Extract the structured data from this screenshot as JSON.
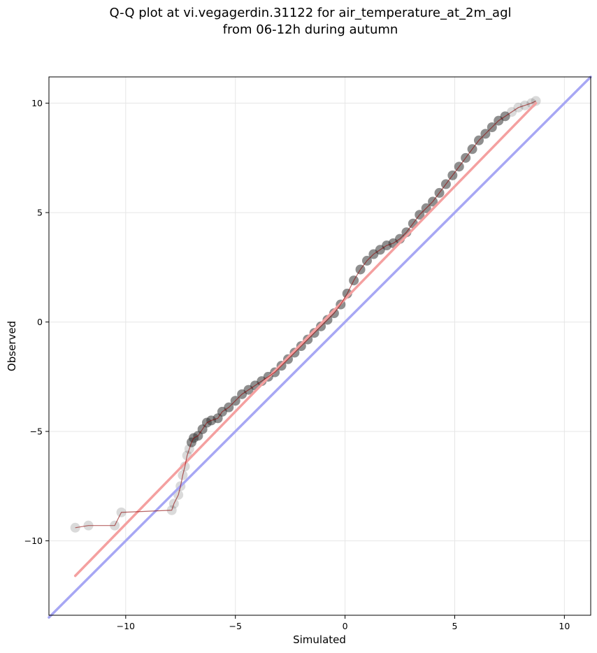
{
  "chart_data": {
    "type": "scatter",
    "title": "Q-Q plot at vi.vegagerdin.31122 for air_temperature_at_2m_agl",
    "subtitle": "from 06-12h during autumn",
    "xlabel": "Simulated",
    "ylabel": "Observed",
    "xlim": [
      -13.5,
      11.2
    ],
    "ylim": [
      -13.4,
      11.2
    ],
    "xticks": [
      -10,
      -5,
      0,
      5,
      10
    ],
    "yticks": [
      -10,
      -5,
      0,
      5,
      10
    ],
    "xtick_labels": [
      "−10",
      "−5",
      "0",
      "5",
      "10"
    ],
    "ytick_labels": [
      "−10",
      "−5",
      "0",
      "5",
      "10"
    ],
    "grid": true,
    "legend": "none",
    "series": [
      {
        "kind": "points",
        "color": "#333333",
        "x": [
          -12.3,
          -11.7,
          -10.5,
          -10.2,
          -7.9,
          -7.8,
          -7.6,
          -7.5,
          -7.4,
          -7.3,
          -7.2,
          -7.1,
          -7.0,
          -6.9,
          -6.7,
          -6.5,
          -6.3,
          -6.1,
          -5.8,
          -5.6,
          -5.3,
          -5.0,
          -4.7,
          -4.4,
          -4.1,
          -3.8,
          -3.5,
          -3.2,
          -2.9,
          -2.6,
          -2.3,
          -2.0,
          -1.7,
          -1.4,
          -1.1,
          -0.8,
          -0.5,
          -0.2,
          0.1,
          0.4,
          0.7,
          1.0,
          1.3,
          1.6,
          1.9,
          2.2,
          2.5,
          2.8,
          3.1,
          3.4,
          3.7,
          4.0,
          4.3,
          4.6,
          4.9,
          5.2,
          5.5,
          5.8,
          6.1,
          6.4,
          6.7,
          7.0,
          7.3,
          7.6,
          7.9,
          8.2,
          8.5,
          8.7
        ],
        "y": [
          -9.4,
          -9.3,
          -9.3,
          -8.7,
          -8.6,
          -8.3,
          -7.9,
          -7.5,
          -7.0,
          -6.6,
          -6.1,
          -5.8,
          -5.5,
          -5.3,
          -5.2,
          -4.9,
          -4.6,
          -4.5,
          -4.4,
          -4.1,
          -3.9,
          -3.6,
          -3.3,
          -3.1,
          -2.9,
          -2.7,
          -2.5,
          -2.3,
          -2.0,
          -1.7,
          -1.4,
          -1.1,
          -0.8,
          -0.5,
          -0.2,
          0.1,
          0.4,
          0.8,
          1.3,
          1.9,
          2.4,
          2.8,
          3.1,
          3.3,
          3.5,
          3.6,
          3.8,
          4.1,
          4.5,
          4.9,
          5.2,
          5.5,
          5.9,
          6.3,
          6.7,
          7.1,
          7.5,
          7.9,
          8.3,
          8.6,
          8.9,
          9.2,
          9.4,
          9.6,
          9.8,
          9.9,
          10.0,
          10.1
        ]
      },
      {
        "kind": "line",
        "color": "#f4a0a0",
        "x": [
          -12.3,
          8.7
        ],
        "y": [
          -11.6,
          10.0
        ]
      },
      {
        "kind": "line",
        "color": "#a7a7f4",
        "x": [
          -13.5,
          11.2
        ],
        "y": [
          -13.5,
          11.2
        ]
      }
    ]
  }
}
